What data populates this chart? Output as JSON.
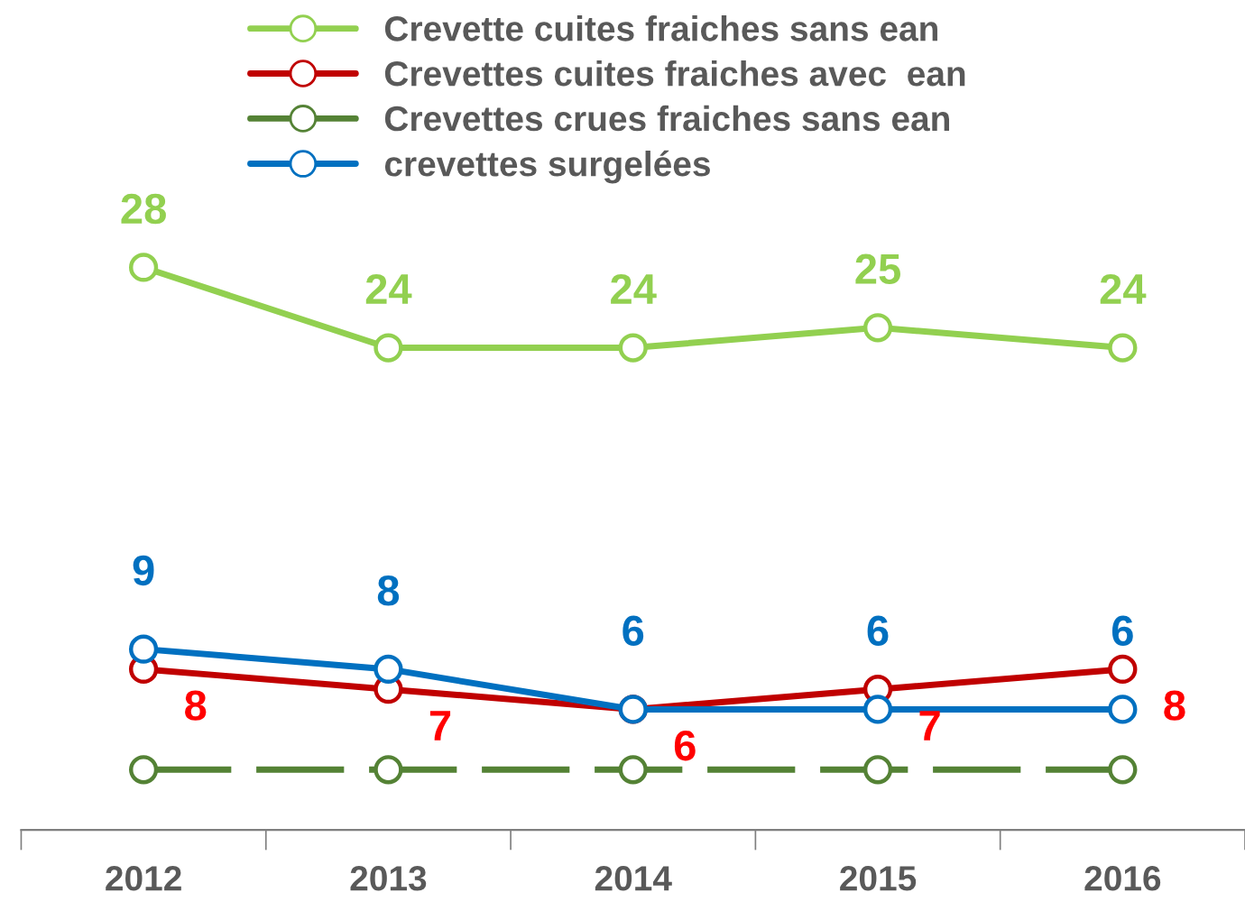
{
  "chart_data": {
    "type": "line",
    "categories": [
      "2012",
      "2013",
      "2014",
      "2015",
      "2016"
    ],
    "marker": "circle",
    "legend": "top",
    "grid": false,
    "series": [
      {
        "name": "Crevette cuites fraiches sans ean",
        "color": "#92d050",
        "values": [
          28,
          24,
          24,
          25,
          24
        ],
        "value_labels": [
          "28",
          "24",
          "24",
          "25",
          "24"
        ]
      },
      {
        "name": "Crevettes cuites fraiches avec  ean",
        "color": "#c00000",
        "values": [
          8,
          7,
          6,
          7,
          8
        ],
        "value_labels": [
          "8",
          "7",
          "6",
          "7",
          "8"
        ]
      },
      {
        "name": "Crevettes crues fraiches sans ean",
        "color": "#548235",
        "values": [
          3,
          3,
          3,
          3,
          3
        ],
        "line_style": "dashed"
      },
      {
        "name": "crevettes surgelées",
        "color": "#0070c0",
        "values": [
          9,
          8,
          6,
          6,
          6
        ],
        "value_labels": [
          "9",
          "8",
          "6",
          "6",
          "6"
        ]
      }
    ]
  }
}
